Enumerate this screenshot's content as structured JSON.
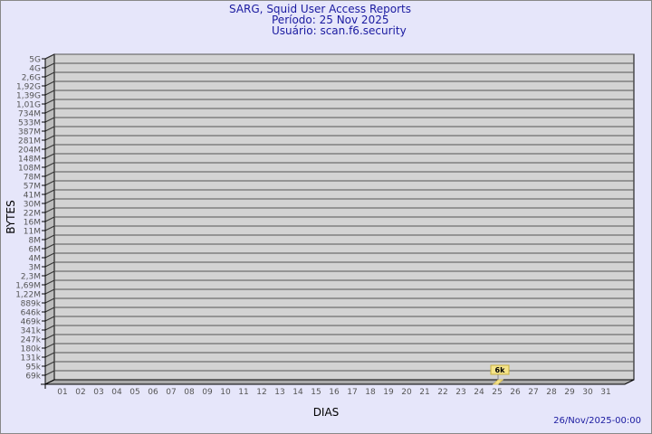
{
  "chart_data": {
    "type": "bar",
    "title": "SARG, Squid User Access Reports",
    "subtitle": [
      "Período: 25 Nov 2025",
      "Usuário: scan.f6.security"
    ],
    "xlabel": "DIAS",
    "ylabel": "BYTES",
    "y_scale": "log-like (categorical tick labels)",
    "y_ticks": [
      "5G",
      "4G",
      "2,6G",
      "1,92G",
      "1,39G",
      "1,01G",
      "734M",
      "533M",
      "387M",
      "281M",
      "204M",
      "148M",
      "108M",
      "78M",
      "57M",
      "41M",
      "30M",
      "22M",
      "16M",
      "11M",
      "8M",
      "6M",
      "4M",
      "3M",
      "2,3M",
      "1,69M",
      "1,22M",
      "889k",
      "646k",
      "469k",
      "341k",
      "247k",
      "180k",
      "131k",
      "95k",
      "69k"
    ],
    "categories": [
      "01",
      "02",
      "03",
      "04",
      "05",
      "06",
      "07",
      "08",
      "09",
      "10",
      "11",
      "12",
      "13",
      "14",
      "15",
      "16",
      "17",
      "18",
      "19",
      "20",
      "21",
      "22",
      "23",
      "24",
      "25",
      "26",
      "27",
      "28",
      "29",
      "30",
      "31"
    ],
    "values": [
      {
        "day": "25",
        "value": "6k"
      }
    ],
    "grid": true,
    "colors": {
      "background": "#e6e6fa",
      "plot": "#d3d3d3",
      "bar": "#f5e48a",
      "text": "#1a1aa0"
    }
  },
  "footer": {
    "timestamp": "26/Nov/2025-00:00"
  }
}
